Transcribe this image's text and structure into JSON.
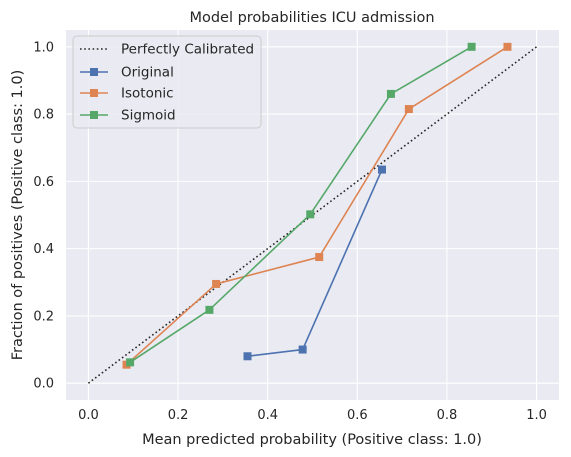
{
  "chart_data": {
    "type": "line",
    "title": "Model probabilities ICU admission",
    "xlabel": "Mean predicted probability (Positive class: 1.0)",
    "ylabel": "Fraction of positives (Positive class: 1.0)",
    "xlim": [
      -0.05,
      1.05
    ],
    "ylim": [
      -0.05,
      1.05
    ],
    "xticks": [
      "0.0",
      "0.2",
      "0.4",
      "0.6",
      "0.8",
      "1.0"
    ],
    "yticks": [
      "0.0",
      "0.2",
      "0.4",
      "0.6",
      "0.8",
      "1.0"
    ],
    "grid": true,
    "legend_position": "top-left",
    "reference": {
      "name": "Perfectly Calibrated",
      "x": [
        0.0,
        1.0
      ],
      "y": [
        0.0,
        1.0
      ],
      "color": "#262626",
      "style": "dotted"
    },
    "series": [
      {
        "name": "Original",
        "color": "#4c72b0",
        "x": [
          0.355,
          0.478,
          0.655
        ],
        "y": [
          0.08,
          0.1,
          0.635
        ]
      },
      {
        "name": "Isotonic",
        "color": "#dd8452",
        "x": [
          0.085,
          0.285,
          0.515,
          0.715,
          0.935
        ],
        "y": [
          0.055,
          0.295,
          0.375,
          0.815,
          1.0
        ]
      },
      {
        "name": "Sigmoid",
        "color": "#55a868",
        "x": [
          0.093,
          0.27,
          0.495,
          0.675,
          0.855
        ],
        "y": [
          0.062,
          0.218,
          0.502,
          0.86,
          1.0
        ]
      }
    ]
  }
}
